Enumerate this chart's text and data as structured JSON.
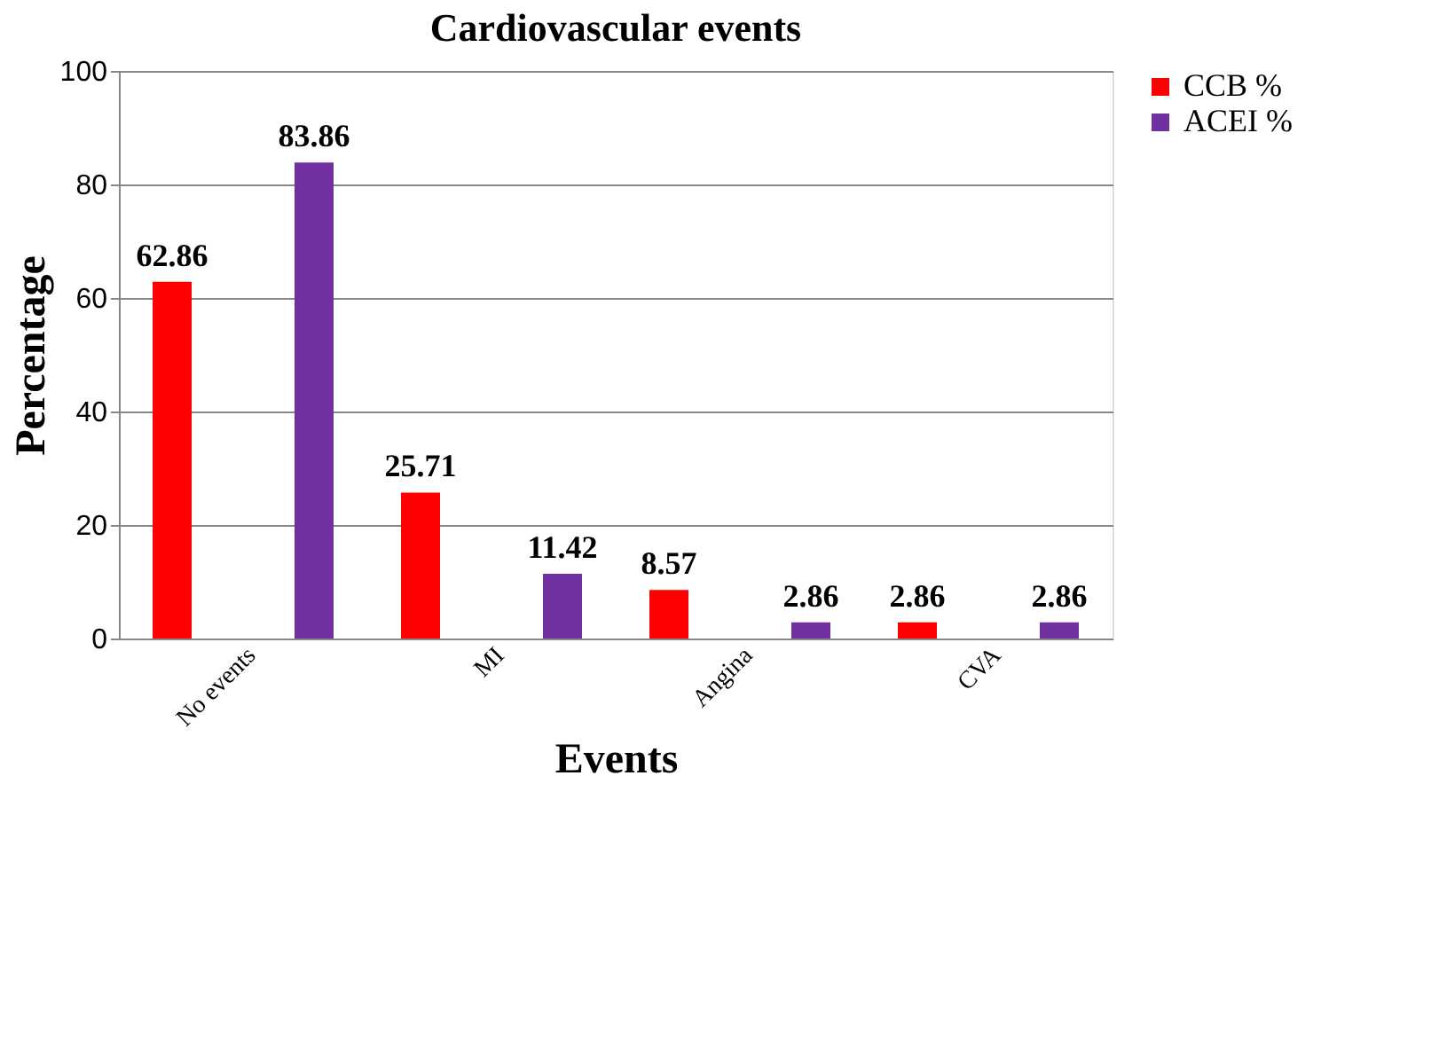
{
  "chart_data": {
    "type": "bar",
    "title": "Cardiovascular events",
    "xlabel": "Events",
    "ylabel": "Percentage",
    "categories": [
      "No events",
      "MI",
      "Angina",
      "CVA"
    ],
    "series": [
      {
        "name": "CCB %",
        "color": "#ff0000",
        "values": [
          62.86,
          25.71,
          8.57,
          2.86
        ]
      },
      {
        "name": "ACEI %",
        "color": "#7030a0",
        "values": [
          83.86,
          11.42,
          2.86,
          2.86
        ]
      }
    ],
    "ylim": [
      0,
      100
    ],
    "yticks": [
      0,
      20,
      40,
      60,
      80,
      100
    ],
    "grid": "y",
    "legend": "top right",
    "data_labels": true
  }
}
